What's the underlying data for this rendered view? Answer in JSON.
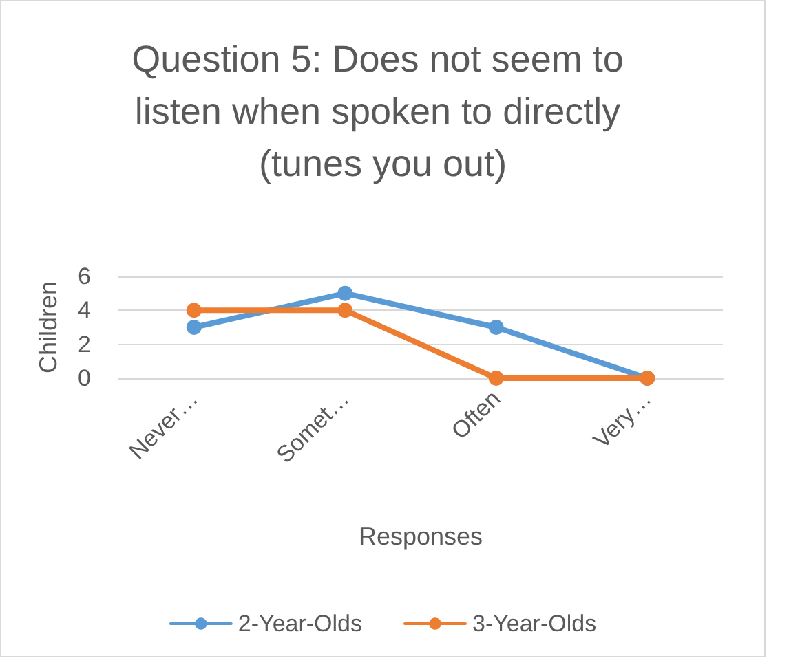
{
  "chart_data": {
    "type": "line",
    "title": "Question 5: Does not seem to listen when spoken to directly (tunes you out)",
    "xlabel": "Responses",
    "ylabel": "Children",
    "categories": [
      "Never…",
      "Somet…",
      "Often",
      "Very…"
    ],
    "series": [
      {
        "name": "2-Year-Olds",
        "color": "#5b9bd5",
        "values": [
          3,
          5,
          3,
          0
        ]
      },
      {
        "name": "3-Year-Olds",
        "color": "#ed7d31",
        "values": [
          4,
          4,
          0,
          0
        ]
      }
    ],
    "ylim": [
      0,
      6
    ],
    "yticks": [
      0,
      2,
      4,
      6
    ],
    "grid": "y",
    "legend": "bottom",
    "marker": "circle",
    "line_style": "solid"
  }
}
